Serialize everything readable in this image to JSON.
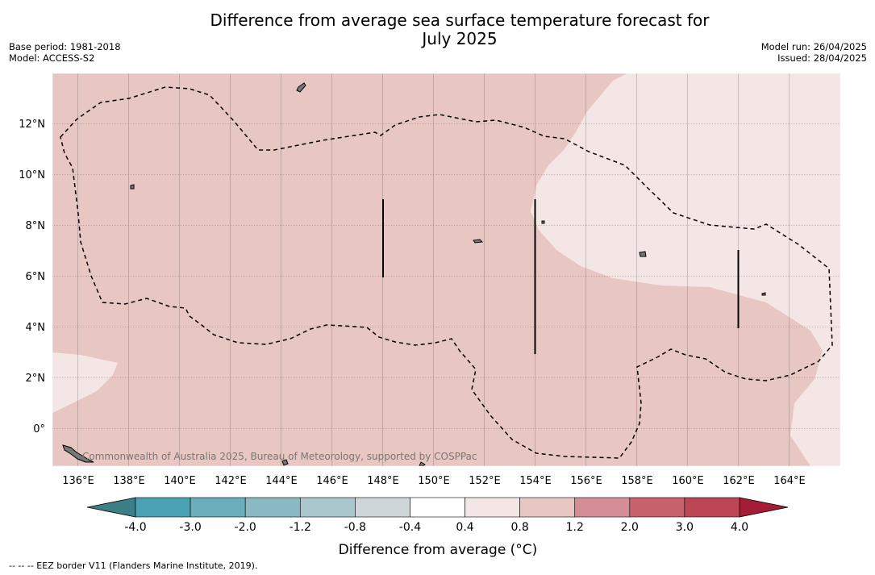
{
  "title_line1": "Difference from average sea surface temperature forecast for",
  "title_line2": "July 2025",
  "base_period": "Base period: 1981-2018",
  "model": "Model: ACCESS-S2",
  "model_run": "Model run: 26/04/2025",
  "issued": "Issued: 28/04/2025",
  "credit": "Commonwealth of Australia 2025, Bureau of Meteorology, supported by COSPPac",
  "x_ticks": [
    "136°E",
    "138°E",
    "140°E",
    "142°E",
    "144°E",
    "146°E",
    "148°E",
    "150°E",
    "152°E",
    "154°E",
    "156°E",
    "158°E",
    "160°E",
    "162°E",
    "164°E"
  ],
  "y_ticks": [
    "12°N",
    "10°N",
    "8°N",
    "6°N",
    "4°N",
    "2°N",
    "0°"
  ],
  "colorbar": {
    "label": "Difference from average (°C)",
    "tick_labels": [
      "-4.0",
      "-3.0",
      "-2.0",
      "-1.2",
      "-0.8",
      "-0.4",
      "0.4",
      "0.8",
      "1.2",
      "2.0",
      "3.0",
      "4.0"
    ],
    "colors": [
      "#4aa1b3",
      "#6aaebc",
      "#8ab9c4",
      "#a9c7cc",
      "#cfd6d9",
      "#ffffff",
      "#f4e6e4",
      "#e8c6c2",
      "#d58e96",
      "#c8636e",
      "#bd4656"
    ],
    "under_color": "#3d7f86",
    "over_color": "#a61b36"
  },
  "legend_note": "--  --  -- EEZ border V11 (Flanders Marine Institute, 2019)."
}
